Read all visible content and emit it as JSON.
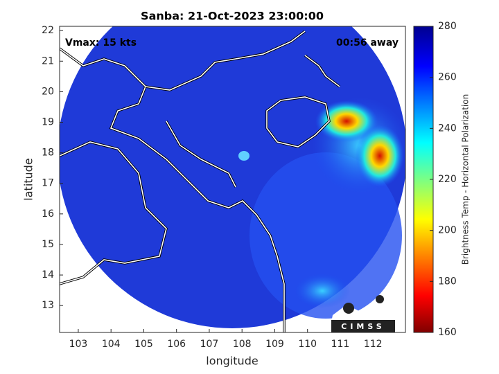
{
  "chart_data": {
    "type": "map",
    "title": "Sanba: 21-Oct-2023 23:00:00",
    "annotations": [
      "Vmax: 15 kts",
      "00:56 away"
    ],
    "x_label": "longitude",
    "y_label": "latitude",
    "xlim": [
      102.43,
      112.99
    ],
    "xticks": [
      103,
      104,
      105,
      106,
      107,
      108,
      109,
      110,
      111,
      112
    ],
    "ylim": [
      12.12,
      22.14
    ],
    "yticks": [
      13,
      14,
      15,
      16,
      17,
      18,
      19,
      20,
      21,
      22
    ],
    "colorbar": {
      "label": "Brightness Temp - Horizontal Polarization",
      "lim": [
        160,
        280
      ],
      "ticks": [
        160,
        180,
        200,
        220,
        240,
        260,
        280
      ]
    },
    "logo": "CIMSS"
  }
}
